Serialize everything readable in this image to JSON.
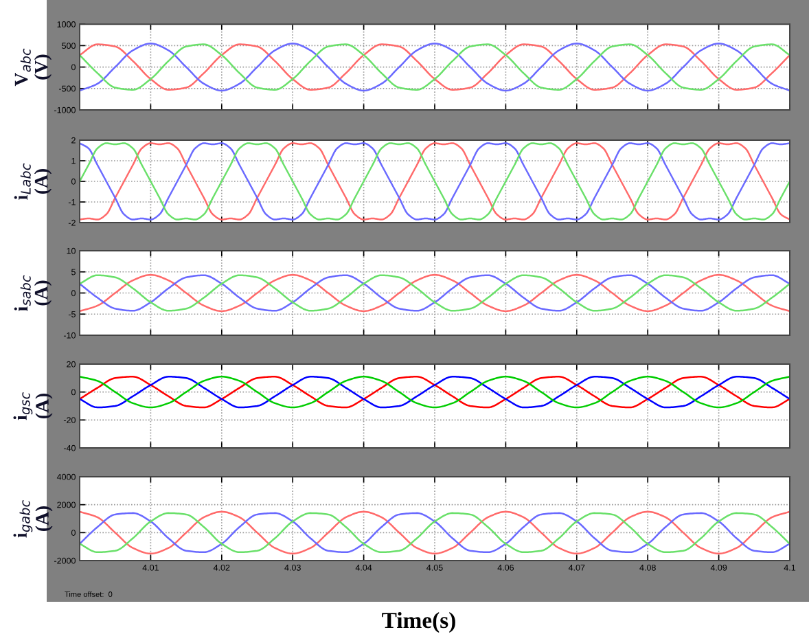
{
  "chart_data": [
    {
      "type": "line",
      "ylabel": "V$_{abc}$\n(V)",
      "xlim": [
        4.0,
        4.1
      ],
      "xticks": [
        4.01,
        4.02,
        4.03,
        4.04,
        4.05,
        4.06,
        4.07,
        4.08,
        4.09,
        4.1
      ],
      "ylim": [
        -1000,
        1000
      ],
      "yticks": [
        -1000,
        -500,
        0,
        500,
        1000
      ],
      "grid": true,
      "tick_labels": "y",
      "x": [
        4.0,
        4.0025,
        4.005,
        4.0075,
        4.01,
        4.0125,
        4.015,
        4.0175,
        4.02,
        4.0225,
        4.025,
        4.0275,
        4.03,
        4.0325,
        4.035,
        4.0375,
        4.04,
        4.0425,
        4.045,
        4.0475,
        4.05,
        4.0525,
        4.055,
        4.0575,
        4.06,
        4.0625,
        4.065,
        4.0675,
        4.07,
        4.0725,
        4.075,
        4.0775,
        4.08,
        4.0825,
        4.085,
        4.0875,
        4.09,
        4.0925,
        4.095,
        4.0975,
        4.1
      ],
      "series": [
        {
          "color": "#ff6a6a",
          "values": [
            280,
            530,
            480,
            140,
            -280,
            -530,
            -480,
            -140,
            280,
            530,
            480,
            140,
            -280,
            -530,
            -480,
            -140,
            280,
            530,
            480,
            140,
            -280,
            -530,
            -480,
            -140,
            280,
            530,
            480,
            140,
            -280,
            -530,
            -480,
            -140,
            280,
            530,
            480,
            140,
            -280,
            -530,
            -480,
            -140,
            280
          ]
        },
        {
          "color": "#6a6aff",
          "values": [
            -550,
            -390,
            0,
            390,
            550,
            390,
            0,
            -390,
            -550,
            -390,
            0,
            390,
            550,
            390,
            0,
            -390,
            -550,
            -390,
            0,
            390,
            550,
            390,
            0,
            -390,
            -550,
            -390,
            0,
            390,
            550,
            390,
            0,
            -390,
            -550,
            -390,
            0,
            390,
            550,
            390,
            0,
            -390,
            -550
          ]
        },
        {
          "color": "#6ae06a",
          "values": [
            280,
            -140,
            -480,
            -530,
            -280,
            140,
            480,
            530,
            280,
            -140,
            -480,
            -530,
            -280,
            140,
            480,
            530,
            280,
            -140,
            -480,
            -530,
            -280,
            140,
            480,
            530,
            280,
            -140,
            -480,
            -530,
            -280,
            140,
            480,
            530,
            280,
            -140,
            -480,
            -530,
            -280,
            140,
            480,
            530,
            280
          ]
        }
      ]
    },
    {
      "type": "line",
      "ylabel": "i$_{Labc}$\n(A)",
      "xlim": [
        4.0,
        4.1
      ],
      "xticks": [
        4.01,
        4.02,
        4.03,
        4.04,
        4.05,
        4.06,
        4.07,
        4.08,
        4.09,
        4.1
      ],
      "ylim": [
        -2,
        2
      ],
      "yticks": [
        -2,
        -1,
        0,
        1,
        2
      ],
      "grid": true,
      "tick_labels": "y",
      "x": [
        4.0,
        4.00125,
        4.0025,
        4.00375,
        4.005,
        4.00625,
        4.0075,
        4.00875,
        4.01,
        4.01125,
        4.0125,
        4.01375,
        4.015,
        4.01625,
        4.0175,
        4.01875,
        4.02,
        4.02125,
        4.0225,
        4.02375,
        4.025,
        4.02625,
        4.0275,
        4.02875,
        4.03,
        4.03125,
        4.0325,
        4.03375,
        4.035,
        4.03625,
        4.0375,
        4.03875,
        4.04,
        4.04125,
        4.0425,
        4.04375,
        4.045,
        4.04625,
        4.0475,
        4.04875,
        4.05,
        4.05125,
        4.0525,
        4.05375,
        4.055,
        4.05625,
        4.0575,
        4.05875,
        4.06,
        4.06125,
        4.0625,
        4.06375,
        4.065,
        4.06625,
        4.0675,
        4.06875,
        4.07,
        4.07125,
        4.0725,
        4.07375,
        4.075,
        4.07625,
        4.0775,
        4.07875,
        4.08,
        4.08125,
        4.0825,
        4.08375,
        4.085,
        4.08625,
        4.0875,
        4.08875,
        4.09,
        4.09125,
        4.0925,
        4.09375,
        4.095,
        4.09625,
        4.0975,
        4.09875,
        4.1
      ],
      "series": [
        {
          "color": "#ff6a6a",
          "values": [
            -1.85,
            -1.8,
            -1.85,
            -1.6,
            -0.8,
            0,
            0.8,
            1.6,
            1.85,
            1.8,
            1.85,
            1.6,
            0.8,
            0,
            -0.8,
            -1.6,
            -1.85,
            -1.8,
            -1.85,
            -1.6,
            -0.8,
            0,
            0.8,
            1.6,
            1.85,
            1.8,
            1.85,
            1.6,
            0.8,
            0,
            -0.8,
            -1.6,
            -1.85,
            -1.8,
            -1.85,
            -1.6,
            -0.8,
            0,
            0.8,
            1.6,
            1.85,
            1.8,
            1.85,
            1.6,
            0.8,
            0,
            -0.8,
            -1.6,
            -1.85,
            -1.8,
            -1.85,
            -1.6,
            -0.8,
            0,
            0.8,
            1.6,
            1.85,
            1.8,
            1.85,
            1.6,
            0.8,
            0,
            -0.8,
            -1.6,
            -1.85,
            -1.8,
            -1.85,
            -1.6,
            -0.8,
            0,
            0.8,
            1.6,
            1.85,
            1.8,
            1.85,
            1.6,
            0.8,
            0,
            -0.8,
            -1.6,
            -1.85
          ]
        },
        {
          "color": "#6a6aff",
          "values": [
            1.85,
            1.6,
            0.8,
            0,
            -0.8,
            -1.6,
            -1.85,
            -1.8,
            -1.85,
            -1.6,
            -0.8,
            0,
            0.8,
            1.6,
            1.85,
            1.8,
            1.85,
            1.6,
            0.8,
            0,
            -0.8,
            -1.6,
            -1.85,
            -1.8,
            -1.85,
            -1.6,
            -0.8,
            0,
            0.8,
            1.6,
            1.85,
            1.8,
            1.85,
            1.6,
            0.8,
            0,
            -0.8,
            -1.6,
            -1.85,
            -1.8,
            -1.85,
            -1.6,
            -0.8,
            0,
            0.8,
            1.6,
            1.85,
            1.8,
            1.85,
            1.6,
            0.8,
            0,
            -0.8,
            -1.6,
            -1.85,
            -1.8,
            -1.85,
            -1.6,
            -0.8,
            0,
            0.8,
            1.6,
            1.85,
            1.8,
            1.85,
            1.6,
            0.8,
            0,
            -0.8,
            -1.6,
            -1.85,
            -1.8,
            -1.85,
            -1.6,
            -0.8,
            0,
            0.8,
            1.6,
            1.85,
            1.8,
            1.85
          ]
        },
        {
          "color": "#6ae06a",
          "values": [
            0,
            0.8,
            1.6,
            1.85,
            1.8,
            1.85,
            1.6,
            0.8,
            0,
            -0.8,
            -1.6,
            -1.85,
            -1.8,
            -1.85,
            -1.6,
            -0.8,
            0,
            0.8,
            1.6,
            1.85,
            1.8,
            1.85,
            1.6,
            0.8,
            0,
            -0.8,
            -1.6,
            -1.85,
            -1.8,
            -1.85,
            -1.6,
            -0.8,
            0,
            0.8,
            1.6,
            1.85,
            1.8,
            1.85,
            1.6,
            0.8,
            0,
            -0.8,
            -1.6,
            -1.85,
            -1.8,
            -1.85,
            -1.6,
            -0.8,
            0,
            0.8,
            1.6,
            1.85,
            1.8,
            1.85,
            1.6,
            0.8,
            0,
            -0.8,
            -1.6,
            -1.85,
            -1.8,
            -1.85,
            -1.6,
            -0.8,
            0,
            0.8,
            1.6,
            1.85,
            1.8,
            1.85,
            1.6,
            0.8,
            0,
            -0.8,
            -1.6,
            -1.85,
            -1.8,
            -1.85,
            -1.6,
            -0.8,
            0
          ]
        }
      ]
    },
    {
      "type": "line",
      "ylabel": "i$_{sabc}$\n(A)",
      "xlim": [
        4.0,
        4.1
      ],
      "xticks": [
        4.01,
        4.02,
        4.03,
        4.04,
        4.05,
        4.06,
        4.07,
        4.08,
        4.09,
        4.1
      ],
      "ylim": [
        -10,
        10
      ],
      "yticks": [
        -10,
        -5,
        0,
        5,
        10
      ],
      "grid": true,
      "tick_labels": "y",
      "x": [
        4.0,
        4.0025,
        4.005,
        4.0075,
        4.01,
        4.0125,
        4.015,
        4.0175,
        4.02,
        4.0225,
        4.025,
        4.0275,
        4.03,
        4.0325,
        4.035,
        4.0375,
        4.04,
        4.0425,
        4.045,
        4.0475,
        4.05,
        4.0525,
        4.055,
        4.0575,
        4.06,
        4.0625,
        4.065,
        4.0675,
        4.07,
        4.0725,
        4.075,
        4.0775,
        4.08,
        4.0825,
        4.085,
        4.0875,
        4.09,
        4.0925,
        4.095,
        4.0975,
        4.1
      ],
      "series": [
        {
          "color": "#ff6a6a",
          "values": [
            -4.3,
            -3,
            0,
            3,
            4.3,
            3,
            0,
            -3,
            -4.3,
            -3,
            0,
            3,
            4.3,
            3,
            0,
            -3,
            -4.3,
            -3,
            0,
            3,
            4.3,
            3,
            0,
            -3,
            -4.3,
            -3,
            0,
            3,
            4.3,
            3,
            0,
            -3,
            -4.3,
            -3,
            0,
            3,
            4.3,
            3,
            0,
            -3,
            -4.3
          ]
        },
        {
          "color": "#6a6aff",
          "values": [
            2.2,
            -1.1,
            -3.7,
            -4.2,
            -2.2,
            1.1,
            3.7,
            4.2,
            2.2,
            -1.1,
            -3.7,
            -4.2,
            -2.2,
            1.1,
            3.7,
            4.2,
            2.2,
            -1.1,
            -3.7,
            -4.2,
            -2.2,
            1.1,
            3.7,
            4.2,
            2.2,
            -1.1,
            -3.7,
            -4.2,
            -2.2,
            1.1,
            3.7,
            4.2,
            2.2,
            -1.1,
            -3.7,
            -4.2,
            -2.2,
            1.1,
            3.7,
            4.2,
            2.2
          ]
        },
        {
          "color": "#6ae06a",
          "values": [
            2.2,
            4.2,
            3.7,
            1.1,
            -2.2,
            -4.2,
            -3.7,
            -1.1,
            2.2,
            4.2,
            3.7,
            1.1,
            -2.2,
            -4.2,
            -3.7,
            -1.1,
            2.2,
            4.2,
            3.7,
            1.1,
            -2.2,
            -4.2,
            -3.7,
            -1.1,
            2.2,
            4.2,
            3.7,
            1.1,
            -2.2,
            -4.2,
            -3.7,
            -1.1,
            2.2,
            4.2,
            3.7,
            1.1,
            -2.2,
            -4.2,
            -3.7,
            -1.1,
            2.2
          ]
        }
      ]
    },
    {
      "type": "line",
      "ylabel": "i$_{gsc}$\n(A)",
      "xlim": [
        4.0,
        4.1
      ],
      "xticks": [
        4.01,
        4.02,
        4.03,
        4.04,
        4.05,
        4.06,
        4.07,
        4.08,
        4.09,
        4.1
      ],
      "ylim": [
        -40,
        20
      ],
      "yticks": [
        -40,
        -20,
        0,
        20
      ],
      "grid": true,
      "tick_labels": "y",
      "x": [
        4.0,
        4.0025,
        4.005,
        4.0075,
        4.01,
        4.0125,
        4.015,
        4.0175,
        4.02,
        4.0225,
        4.025,
        4.0275,
        4.03,
        4.0325,
        4.035,
        4.0375,
        4.04,
        4.0425,
        4.045,
        4.0475,
        4.05,
        4.0525,
        4.055,
        4.0575,
        4.06,
        4.0625,
        4.065,
        4.0675,
        4.07,
        4.0725,
        4.075,
        4.0775,
        4.08,
        4.0825,
        4.085,
        4.0875,
        4.09,
        4.0925,
        4.095,
        4.0975,
        4.1
      ],
      "series": [
        {
          "color": "#ff0000",
          "values": [
            -5,
            3,
            10,
            11,
            5,
            -3,
            -10,
            -11,
            -5,
            3,
            10,
            11,
            5,
            -3,
            -10,
            -11,
            -5,
            3,
            10,
            11,
            5,
            -3,
            -10,
            -11,
            -5,
            3,
            10,
            11,
            5,
            -3,
            -10,
            -11,
            -5,
            3,
            10,
            11,
            5,
            -3,
            -10,
            -11,
            -5
          ]
        },
        {
          "color": "#0000ff",
          "values": [
            -5,
            -11,
            -10,
            -3,
            5,
            11,
            10,
            3,
            -5,
            -11,
            -10,
            -3,
            5,
            11,
            10,
            3,
            -5,
            -11,
            -10,
            -3,
            5,
            11,
            10,
            3,
            -5,
            -11,
            -10,
            -3,
            5,
            11,
            10,
            3,
            -5,
            -11,
            -10,
            -3,
            5,
            11,
            10,
            3,
            -5
          ]
        },
        {
          "color": "#00cc00",
          "values": [
            11,
            8,
            0,
            -8,
            -11,
            -8,
            0,
            8,
            11,
            8,
            0,
            -8,
            -11,
            -8,
            0,
            8,
            11,
            8,
            0,
            -8,
            -11,
            -8,
            0,
            8,
            11,
            8,
            0,
            -8,
            -11,
            -8,
            0,
            8,
            11,
            8,
            0,
            -8,
            -11,
            -8,
            0,
            8,
            11
          ]
        }
      ]
    },
    {
      "type": "line",
      "ylabel": "i$_{gabc}$\n(A)",
      "xlabel": "Time(s)",
      "annotations": [
        "Time offset:  0"
      ],
      "xlim": [
        4.0,
        4.1
      ],
      "xticks": [
        4.01,
        4.02,
        4.03,
        4.04,
        4.05,
        4.06,
        4.07,
        4.08,
        4.09,
        4.1
      ],
      "ylim": [
        -2000,
        4000
      ],
      "yticks": [
        -2000,
        0,
        2000,
        4000
      ],
      "grid": true,
      "x": [
        4.0,
        4.0025,
        4.005,
        4.0075,
        4.01,
        4.0125,
        4.015,
        4.0175,
        4.02,
        4.0225,
        4.025,
        4.0275,
        4.03,
        4.0325,
        4.035,
        4.0375,
        4.04,
        4.0425,
        4.045,
        4.0475,
        4.05,
        4.0525,
        4.055,
        4.0575,
        4.06,
        4.0625,
        4.065,
        4.0675,
        4.07,
        4.0725,
        4.075,
        4.0775,
        4.08,
        4.0825,
        4.085,
        4.0875,
        4.09,
        4.0925,
        4.095,
        4.0975,
        4.1
      ],
      "series": [
        {
          "color": "#ff6a6a",
          "values": [
            1500,
            1100,
            0,
            -1100,
            -1500,
            -1100,
            0,
            1100,
            1500,
            1100,
            0,
            -1100,
            -1500,
            -1100,
            0,
            1100,
            1500,
            1100,
            0,
            -1100,
            -1500,
            -1100,
            0,
            1100,
            1500,
            1100,
            0,
            -1100,
            -1500,
            -1100,
            0,
            1100,
            1500,
            1100,
            0,
            -1100,
            -1500,
            -1100,
            0,
            1100,
            1500
          ]
        },
        {
          "color": "#6a6aff",
          "values": [
            -800,
            400,
            1300,
            1400,
            800,
            -400,
            -1300,
            -1400,
            -800,
            400,
            1300,
            1400,
            800,
            -400,
            -1300,
            -1400,
            -800,
            400,
            1300,
            1400,
            800,
            -400,
            -1300,
            -1400,
            -800,
            400,
            1300,
            1400,
            800,
            -400,
            -1300,
            -1400,
            -800,
            400,
            1300,
            1400,
            800,
            -400,
            -1300,
            -1400,
            -800
          ]
        },
        {
          "color": "#6ae06a",
          "values": [
            -800,
            -1400,
            -1300,
            -400,
            800,
            1400,
            1300,
            400,
            -800,
            -1400,
            -1300,
            -400,
            800,
            1400,
            1300,
            400,
            -800,
            -1400,
            -1300,
            -400,
            800,
            1400,
            1300,
            400,
            -800,
            -1400,
            -1300,
            -400,
            800,
            1400,
            1300,
            400,
            -800,
            -1400,
            -1300,
            -400,
            800,
            1400,
            1300,
            400,
            -800
          ]
        }
      ]
    }
  ]
}
